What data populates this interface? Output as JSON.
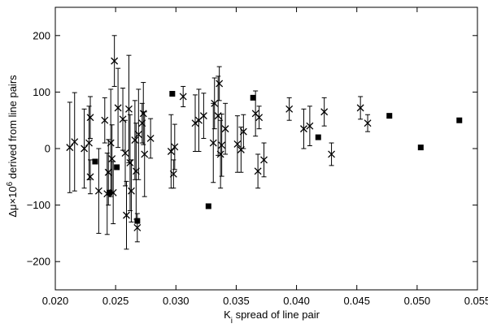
{
  "chart_data": {
    "type": "scatter",
    "xlabel_main": "K",
    "xlabel_sub": "i",
    "xlabel_rest": " spread of line pair",
    "ylabel_main": "Δμ×10",
    "ylabel_sup": "6",
    "ylabel_rest": " derived from line pairs",
    "xlim": [
      0.02,
      0.055
    ],
    "ylim": [
      -250,
      250
    ],
    "x_ticks": [
      0.02,
      0.025,
      0.03,
      0.035,
      0.04,
      0.045,
      0.05,
      0.055
    ],
    "x_tick_labels": [
      "0.020",
      "0.025",
      "0.030",
      "0.035",
      "0.040",
      "0.045",
      "0.050",
      "0.055"
    ],
    "y_ticks": [
      -200,
      -100,
      0,
      100,
      200
    ],
    "y_tick_labels": [
      "−200",
      "−100",
      "0",
      "100",
      "200"
    ],
    "grid": false,
    "legend": "none",
    "series": [
      {
        "marker": "cross",
        "with_error_bars": true,
        "points": [
          {
            "x": 0.0212,
            "y": 2,
            "err": 80
          },
          {
            "x": 0.0216,
            "y": 12,
            "err": 87
          },
          {
            "x": 0.0224,
            "y": 0,
            "err": 70
          },
          {
            "x": 0.0228,
            "y": 10,
            "err": 65
          },
          {
            "x": 0.0229,
            "y": 55,
            "err": 37
          },
          {
            "x": 0.0229,
            "y": -50,
            "err": 30
          },
          {
            "x": 0.0236,
            "y": -75,
            "err": 75
          },
          {
            "x": 0.0241,
            "y": 50,
            "err": 40
          },
          {
            "x": 0.0243,
            "y": -80,
            "err": 72
          },
          {
            "x": 0.0244,
            "y": -42,
            "err": 58
          },
          {
            "x": 0.0246,
            "y": 10,
            "err": 95
          },
          {
            "x": 0.0247,
            "y": -18,
            "err": 60
          },
          {
            "x": 0.0248,
            "y": -78,
            "err": 55
          },
          {
            "x": 0.0249,
            "y": 155,
            "err": 45
          },
          {
            "x": 0.0252,
            "y": 72,
            "err": 70
          },
          {
            "x": 0.0256,
            "y": 52,
            "err": 55
          },
          {
            "x": 0.0258,
            "y": -8,
            "err": 58
          },
          {
            "x": 0.0259,
            "y": -118,
            "err": 60
          },
          {
            "x": 0.0261,
            "y": 70,
            "err": 95
          },
          {
            "x": 0.0262,
            "y": -25,
            "err": 85
          },
          {
            "x": 0.0263,
            "y": -75,
            "err": 55
          },
          {
            "x": 0.0266,
            "y": 15,
            "err": 70
          },
          {
            "x": 0.0267,
            "y": -40,
            "err": 85
          },
          {
            "x": 0.0268,
            "y": -140,
            "err": 25
          },
          {
            "x": 0.0269,
            "y": 25,
            "err": 80
          },
          {
            "x": 0.0272,
            "y": 45,
            "err": 35
          },
          {
            "x": 0.0273,
            "y": 62,
            "err": 55
          },
          {
            "x": 0.0274,
            "y": -10,
            "err": 75
          },
          {
            "x": 0.0279,
            "y": 18,
            "err": 35
          },
          {
            "x": 0.0296,
            "y": -5,
            "err": 65
          },
          {
            "x": 0.0298,
            "y": -45,
            "err": 25
          },
          {
            "x": 0.0299,
            "y": 3,
            "err": 40
          },
          {
            "x": 0.0306,
            "y": 92,
            "err": 18
          },
          {
            "x": 0.0316,
            "y": 45,
            "err": 50
          },
          {
            "x": 0.0319,
            "y": 50,
            "err": 55
          },
          {
            "x": 0.0323,
            "y": 58,
            "err": 40
          },
          {
            "x": 0.0331,
            "y": 10,
            "err": 70
          },
          {
            "x": 0.0332,
            "y": 80,
            "err": 45
          },
          {
            "x": 0.0335,
            "y": 58,
            "err": 70
          },
          {
            "x": 0.0336,
            "y": 115,
            "err": 30
          },
          {
            "x": 0.0337,
            "y": -10,
            "err": 60
          },
          {
            "x": 0.0338,
            "y": 6,
            "err": 55
          },
          {
            "x": 0.0341,
            "y": 35,
            "err": 45
          },
          {
            "x": 0.0351,
            "y": 8,
            "err": 50
          },
          {
            "x": 0.0354,
            "y": -2,
            "err": 40
          },
          {
            "x": 0.0356,
            "y": 30,
            "err": 30
          },
          {
            "x": 0.0366,
            "y": 62,
            "err": 40
          },
          {
            "x": 0.0368,
            "y": -40,
            "err": 30
          },
          {
            "x": 0.0369,
            "y": 55,
            "err": 20
          },
          {
            "x": 0.0373,
            "y": -20,
            "err": 30
          },
          {
            "x": 0.0394,
            "y": 70,
            "err": 20
          },
          {
            "x": 0.0406,
            "y": 35,
            "err": 35
          },
          {
            "x": 0.0411,
            "y": 40,
            "err": 35
          },
          {
            "x": 0.0423,
            "y": 65,
            "err": 25
          },
          {
            "x": 0.0429,
            "y": -10,
            "err": 20
          },
          {
            "x": 0.0453,
            "y": 72,
            "err": 20
          },
          {
            "x": 0.0459,
            "y": 45,
            "err": 15
          }
        ]
      },
      {
        "marker": "square",
        "with_error_bars": false,
        "points": [
          {
            "x": 0.0233,
            "y": -23
          },
          {
            "x": 0.0245,
            "y": -78
          },
          {
            "x": 0.0251,
            "y": -33
          },
          {
            "x": 0.0268,
            "y": -128
          },
          {
            "x": 0.0297,
            "y": 97
          },
          {
            "x": 0.0327,
            "y": -102
          },
          {
            "x": 0.0364,
            "y": 90
          },
          {
            "x": 0.0418,
            "y": 20
          },
          {
            "x": 0.0477,
            "y": 58
          },
          {
            "x": 0.0503,
            "y": 2
          },
          {
            "x": 0.0535,
            "y": 50
          }
        ]
      }
    ]
  }
}
